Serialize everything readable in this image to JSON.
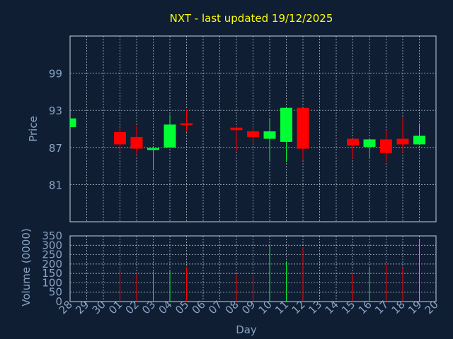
{
  "chart_data": [
    {
      "type": "candlestick",
      "title": "NXT - last updated 19/12/2025",
      "ylabel": "Price",
      "ylim": [
        75,
        105
      ],
      "yticks": [
        81,
        87,
        93,
        99
      ],
      "x_tick_labels": [
        "28",
        "29",
        "30",
        "01",
        "02",
        "03",
        "04",
        "05",
        "06",
        "07",
        "08",
        "09",
        "10",
        "11",
        "12",
        "13",
        "14",
        "15",
        "16",
        "17",
        "18",
        "19",
        "20"
      ],
      "candles": [
        {
          "day": "28",
          "open": 90.3,
          "close": 91.7,
          "high": 91.7,
          "low": 90.3
        },
        {
          "day": "01",
          "open": 89.5,
          "close": 87.5,
          "high": 90.2,
          "low": 86.3
        },
        {
          "day": "02",
          "open": 88.7,
          "close": 86.8,
          "high": 90.5,
          "low": 85.7
        },
        {
          "day": "03",
          "open": 86.6,
          "close": 86.9,
          "high": 87.2,
          "low": 83.5
        },
        {
          "day": "04",
          "open": 87.0,
          "close": 90.7,
          "high": 92.3,
          "low": 87.0
        },
        {
          "day": "05",
          "open": 90.9,
          "close": 90.6,
          "high": 93.2,
          "low": 89.5
        },
        {
          "day": "08",
          "open": 90.2,
          "close": 89.8,
          "high": 90.4,
          "low": 86.3
        },
        {
          "day": "09",
          "open": 89.6,
          "close": 88.7,
          "high": 90.3,
          "low": 87.5
        },
        {
          "day": "10",
          "open": 88.4,
          "close": 89.6,
          "high": 91.6,
          "low": 84.8
        },
        {
          "day": "11",
          "open": 87.9,
          "close": 93.4,
          "high": 93.4,
          "low": 84.8
        },
        {
          "day": "12",
          "open": 93.4,
          "close": 86.8,
          "high": 93.4,
          "low": 84.9
        },
        {
          "day": "15",
          "open": 88.4,
          "close": 87.3,
          "high": 88.4,
          "low": 85.2
        },
        {
          "day": "16",
          "open": 87.1,
          "close": 88.3,
          "high": 88.4,
          "low": 85.2
        },
        {
          "day": "17",
          "open": 88.3,
          "close": 86.1,
          "high": 89.8,
          "low": 84.6
        },
        {
          "day": "18",
          "open": 88.4,
          "close": 87.5,
          "high": 91.9,
          "low": 86.2
        },
        {
          "day": "19",
          "open": 87.5,
          "close": 88.9,
          "high": 90.9,
          "low": 87.5
        }
      ],
      "colors": {
        "up": "#00ff33",
        "down": "#ff0000",
        "grid": "#c8d0dc",
        "axis_text": "#8aa3c4",
        "title": "#ffff00",
        "background": "#0f1e33"
      }
    },
    {
      "type": "bar",
      "ylabel": "Volume (0000)",
      "xlabel": "Day",
      "ylim": [
        0,
        350
      ],
      "yticks": [
        0,
        50,
        100,
        150,
        200,
        250,
        300,
        350
      ],
      "bars": [
        {
          "day": "01",
          "value": 165,
          "direction": "down"
        },
        {
          "day": "02",
          "value": 150,
          "direction": "down"
        },
        {
          "day": "03",
          "value": 160,
          "direction": "up"
        },
        {
          "day": "04",
          "value": 165,
          "direction": "up"
        },
        {
          "day": "05",
          "value": 185,
          "direction": "down"
        },
        {
          "day": "08",
          "value": 145,
          "direction": "down"
        },
        {
          "day": "09",
          "value": 140,
          "direction": "down"
        },
        {
          "day": "10",
          "value": 300,
          "direction": "up"
        },
        {
          "day": "11",
          "value": 210,
          "direction": "up"
        },
        {
          "day": "12",
          "value": 290,
          "direction": "down"
        },
        {
          "day": "15",
          "value": 150,
          "direction": "down"
        },
        {
          "day": "16",
          "value": 185,
          "direction": "up"
        },
        {
          "day": "17",
          "value": 200,
          "direction": "down"
        },
        {
          "day": "18",
          "value": 180,
          "direction": "down"
        },
        {
          "day": "19",
          "value": 335,
          "direction": "up"
        }
      ]
    }
  ]
}
